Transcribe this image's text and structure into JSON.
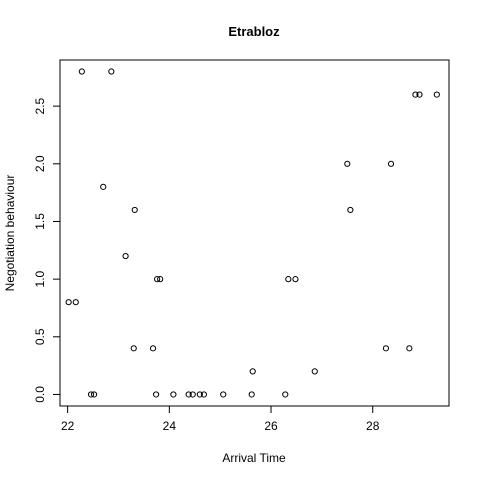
{
  "chart_data": {
    "type": "scatter",
    "title": "Etrabloz",
    "xlabel": "Arrival Time",
    "ylabel": "Negotiation behaviour",
    "xlim": [
      21.85,
      29.5
    ],
    "ylim": [
      -0.1,
      2.9
    ],
    "xticks": [
      22,
      24,
      26,
      28
    ],
    "xtick_labels": [
      "22",
      "24",
      "26",
      "28"
    ],
    "yticks": [
      0.0,
      0.5,
      1.0,
      1.5,
      2.0,
      2.5
    ],
    "ytick_labels": [
      "0.0",
      "0.5",
      "1.0",
      "1.5",
      "2.0",
      "2.5"
    ],
    "grid": false,
    "marker": "open-circle",
    "colors": {
      "points": "#000000",
      "axes": "#000000",
      "background": "#ffffff"
    },
    "points": [
      {
        "x": 22.02,
        "y": 0.8
      },
      {
        "x": 22.16,
        "y": 0.8
      },
      {
        "x": 22.28,
        "y": 2.8
      },
      {
        "x": 22.46,
        "y": 0.0
      },
      {
        "x": 22.52,
        "y": 0.0
      },
      {
        "x": 22.7,
        "y": 1.8
      },
      {
        "x": 22.86,
        "y": 2.8
      },
      {
        "x": 23.14,
        "y": 1.2
      },
      {
        "x": 23.3,
        "y": 0.4
      },
      {
        "x": 23.32,
        "y": 1.6
      },
      {
        "x": 23.68,
        "y": 0.4
      },
      {
        "x": 23.74,
        "y": 0.0
      },
      {
        "x": 23.76,
        "y": 1.0
      },
      {
        "x": 23.82,
        "y": 1.0
      },
      {
        "x": 24.08,
        "y": 0.0
      },
      {
        "x": 24.38,
        "y": 0.0
      },
      {
        "x": 24.46,
        "y": 0.0
      },
      {
        "x": 24.6,
        "y": 0.0
      },
      {
        "x": 24.68,
        "y": 0.0
      },
      {
        "x": 25.06,
        "y": 0.0
      },
      {
        "x": 25.62,
        "y": 0.0
      },
      {
        "x": 25.64,
        "y": 0.2
      },
      {
        "x": 26.28,
        "y": 0.0
      },
      {
        "x": 26.34,
        "y": 1.0
      },
      {
        "x": 26.48,
        "y": 1.0
      },
      {
        "x": 26.86,
        "y": 0.2
      },
      {
        "x": 27.5,
        "y": 2.0
      },
      {
        "x": 27.56,
        "y": 1.6
      },
      {
        "x": 28.26,
        "y": 0.4
      },
      {
        "x": 28.36,
        "y": 2.0
      },
      {
        "x": 28.72,
        "y": 0.4
      },
      {
        "x": 28.84,
        "y": 2.6
      },
      {
        "x": 28.92,
        "y": 2.6
      },
      {
        "x": 29.26,
        "y": 2.6
      }
    ]
  }
}
